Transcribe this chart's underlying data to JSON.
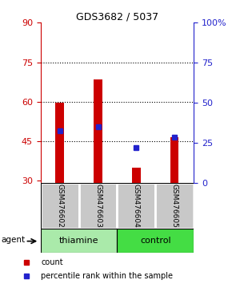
{
  "title": "GDS3682 / 5037",
  "samples": [
    "GSM476602",
    "GSM476603",
    "GSM476604",
    "GSM476605"
  ],
  "bar_bottom": 29,
  "red_tops": [
    59.5,
    68.5,
    35.0,
    46.5
  ],
  "blue_values": [
    49.0,
    50.5,
    42.5,
    46.5
  ],
  "ylim": [
    29,
    90
  ],
  "yticks_left": [
    30,
    45,
    60,
    75,
    90
  ],
  "y_right_labels": [
    "0",
    "25",
    "50",
    "75",
    "100%"
  ],
  "hlines": [
    45,
    60,
    75
  ],
  "red_color": "#CC0000",
  "blue_color": "#2222CC",
  "thiamine_color": "#AAEAAA",
  "control_color": "#44DD44",
  "gray_color": "#C8C8C8",
  "bar_width": 0.22,
  "title_fontsize": 9
}
